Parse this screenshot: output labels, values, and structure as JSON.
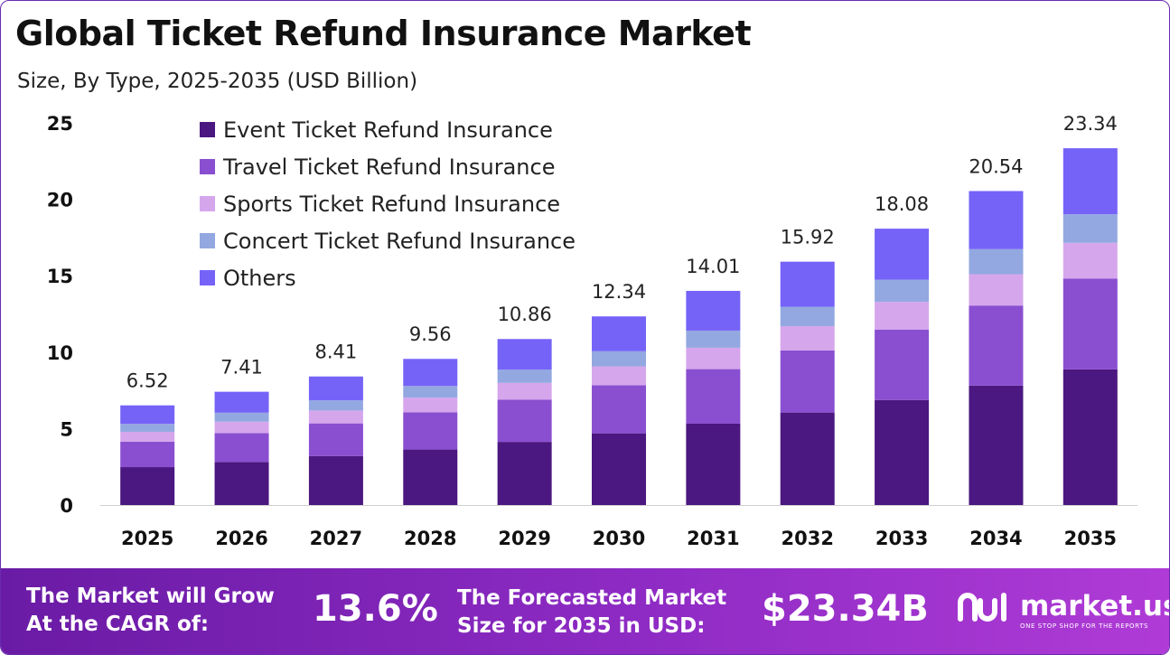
{
  "title": "Global Ticket Refund Insurance Market",
  "subtitle": "Size, By Type, 2025-2035 (USD Billion)",
  "colors": {
    "event": "#4b1780",
    "travel": "#8a4fd0",
    "sports": "#d6a6ec",
    "concert": "#93a8e0",
    "others": "#7563f8",
    "footer": "#7a22b3"
  },
  "chart_data": {
    "type": "bar",
    "stacked": true,
    "categories": [
      "2025",
      "2026",
      "2027",
      "2028",
      "2029",
      "2030",
      "2031",
      "2032",
      "2033",
      "2034",
      "2035"
    ],
    "series": [
      {
        "name": "Event Ticket Refund Insurance",
        "color": "#4b1780",
        "values": [
          2.48,
          2.82,
          3.2,
          3.63,
          4.13,
          4.69,
          5.32,
          6.05,
          6.87,
          7.81,
          8.87
        ]
      },
      {
        "name": "Travel Ticket Refund Insurance",
        "color": "#8a4fd0",
        "values": [
          1.66,
          1.89,
          2.14,
          2.44,
          2.77,
          3.15,
          3.57,
          4.06,
          4.61,
          5.24,
          5.95
        ]
      },
      {
        "name": "Sports Ticket Refund Insurance",
        "color": "#d6a6ec",
        "values": [
          0.65,
          0.74,
          0.84,
          0.96,
          1.09,
          1.23,
          1.4,
          1.59,
          1.81,
          2.05,
          2.33
        ]
      },
      {
        "name": "Concert Ticket Refund Insurance",
        "color": "#93a8e0",
        "values": [
          0.52,
          0.59,
          0.67,
          0.76,
          0.87,
          0.99,
          1.12,
          1.27,
          1.45,
          1.64,
          1.87
        ]
      },
      {
        "name": "Others",
        "color": "#7563f8",
        "values": [
          1.21,
          1.37,
          1.56,
          1.77,
          2.0,
          2.28,
          2.6,
          2.95,
          3.34,
          3.8,
          4.32
        ]
      }
    ],
    "totals": [
      "6.52",
      "7.41",
      "8.41",
      "9.56",
      "10.86",
      "12.34",
      "14.01",
      "15.92",
      "18.08",
      "20.54",
      "23.34"
    ],
    "y_ticks": [
      "0",
      "5",
      "10",
      "15",
      "20",
      "25"
    ],
    "ylim": [
      0,
      25
    ],
    "grid": false,
    "legend_position": "top-left"
  },
  "footer": {
    "cagr_label_line1": "The Market will Grow",
    "cagr_label_line2": "At the CAGR of:",
    "cagr_value": "13.6%",
    "forecast_label_line1": "The Forecasted Market",
    "forecast_label_line2": "Size for 2035 in USD:",
    "forecast_value": "$23.34B",
    "brand_name": "market.us",
    "brand_tagline": "ONE STOP SHOP FOR THE REPORTS"
  }
}
